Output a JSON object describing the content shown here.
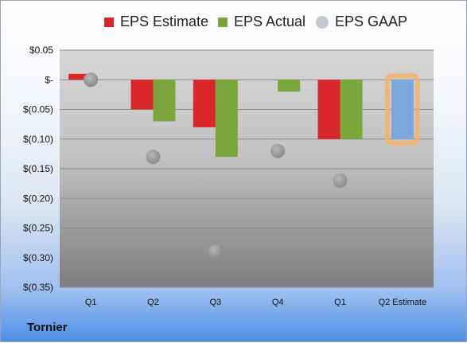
{
  "company": "Tornier",
  "colors": {
    "estimate": "#d9262b",
    "actual": "#7aa63c",
    "gaap": "#9aa0a8",
    "q2_estimate": "#7ca7dd",
    "highlight": "#f5b26b"
  },
  "chart_data": {
    "type": "bar",
    "title": "",
    "xlabel": "",
    "ylabel": "",
    "categories": [
      "Q1",
      "Q2",
      "Q3",
      "Q4",
      "Q1",
      "Q2 Estimate"
    ],
    "ylim": [
      -0.35,
      0.05
    ],
    "yticks": [
      0.05,
      0,
      -0.05,
      -0.1,
      -0.15,
      -0.2,
      -0.25,
      -0.3,
      -0.35
    ],
    "ytick_labels": [
      "$0.05",
      "$-",
      "$(0.05)",
      "$(0.10)",
      "$(0.15)",
      "$(0.20)",
      "$(0.25)",
      "$(0.30)",
      "$(0.35)"
    ],
    "legend_placement": "top",
    "series": [
      {
        "name": "EPS Estimate",
        "type": "bar",
        "values": [
          0.01,
          -0.05,
          -0.08,
          null,
          -0.1,
          null
        ]
      },
      {
        "name": "EPS Actual",
        "type": "bar",
        "values": [
          null,
          -0.07,
          -0.13,
          -0.02,
          -0.1,
          -0.1
        ]
      },
      {
        "name": "EPS GAAP",
        "type": "scatter",
        "values": [
          0.0,
          -0.13,
          -0.29,
          -0.12,
          -0.17,
          null
        ]
      }
    ],
    "highlighted_category": "Q2 Estimate",
    "grid": true
  }
}
